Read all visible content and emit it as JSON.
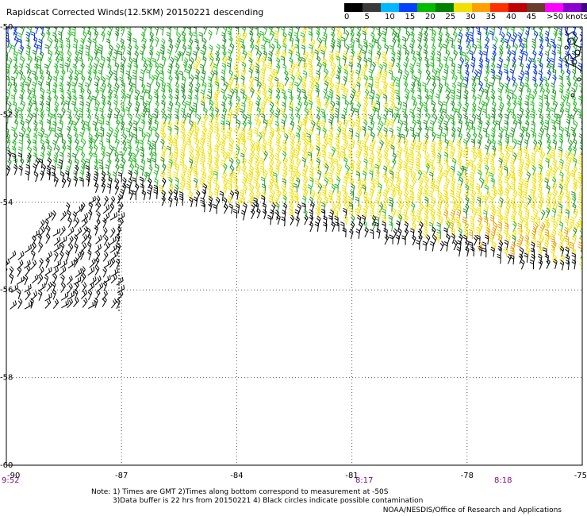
{
  "title": "Rapidscat Corrected Winds(12.5KM) 20150221 descending",
  "legend": {
    "labels": [
      "0",
      "5",
      "10",
      "15",
      "20",
      "25",
      "30",
      "35",
      "40",
      "45",
      ">50 knots"
    ],
    "colors": [
      "#000000",
      "#3a3a3a",
      "#00b8ff",
      "#0040ff",
      "#00bb00",
      "#008000",
      "#f0e000",
      "#ffa000",
      "#ff3000",
      "#c00000",
      "#6a3a2a",
      "#ff00ff",
      "#8a00d0",
      "#400080"
    ]
  },
  "map": {
    "lon_ticks": [
      "-90",
      "-87",
      "-84",
      "-81",
      "-78",
      "-75"
    ],
    "lat_ticks": [
      "-50",
      "-52",
      "-54",
      "-56",
      "-58",
      "-60"
    ],
    "time_labels": [
      "9:52",
      "8:17",
      "8:18"
    ]
  },
  "footer": {
    "note_line1": "Note: 1) Times are GMT 2)Times along bottom correspond to measurement at -50S",
    "note_line2": "3)Data buffer is 22 hrs from 20150221 4) Black circles indicate possible contamination",
    "credit": "NOAA/NESDIS/Office of Research and Applications"
  }
}
